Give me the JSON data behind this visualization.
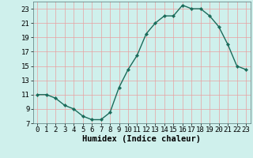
{
  "x": [
    0,
    1,
    2,
    3,
    4,
    5,
    6,
    7,
    8,
    9,
    10,
    11,
    12,
    13,
    14,
    15,
    16,
    17,
    18,
    19,
    20,
    21,
    22,
    23
  ],
  "y": [
    11,
    11,
    10.5,
    9.5,
    9,
    8,
    7.5,
    7.5,
    8.5,
    12,
    14.5,
    16.5,
    19.5,
    21,
    22,
    22,
    23.5,
    23,
    23,
    22,
    20.5,
    18,
    15,
    14.5
  ],
  "xlabel": "Humidex (Indice chaleur)",
  "xlim": [
    -0.5,
    23.5
  ],
  "ylim": [
    7,
    24
  ],
  "yticks": [
    7,
    9,
    11,
    13,
    15,
    17,
    19,
    21,
    23
  ],
  "xticks": [
    0,
    1,
    2,
    3,
    4,
    5,
    6,
    7,
    8,
    9,
    10,
    11,
    12,
    13,
    14,
    15,
    16,
    17,
    18,
    19,
    20,
    21,
    22,
    23
  ],
  "line_color": "#1a6b5a",
  "marker_color": "#1a6b5a",
  "bg_color": "#cff0ec",
  "grid_color": "#e8a0a0",
  "xlabel_fontsize": 7.5,
  "tick_fontsize": 6.5
}
